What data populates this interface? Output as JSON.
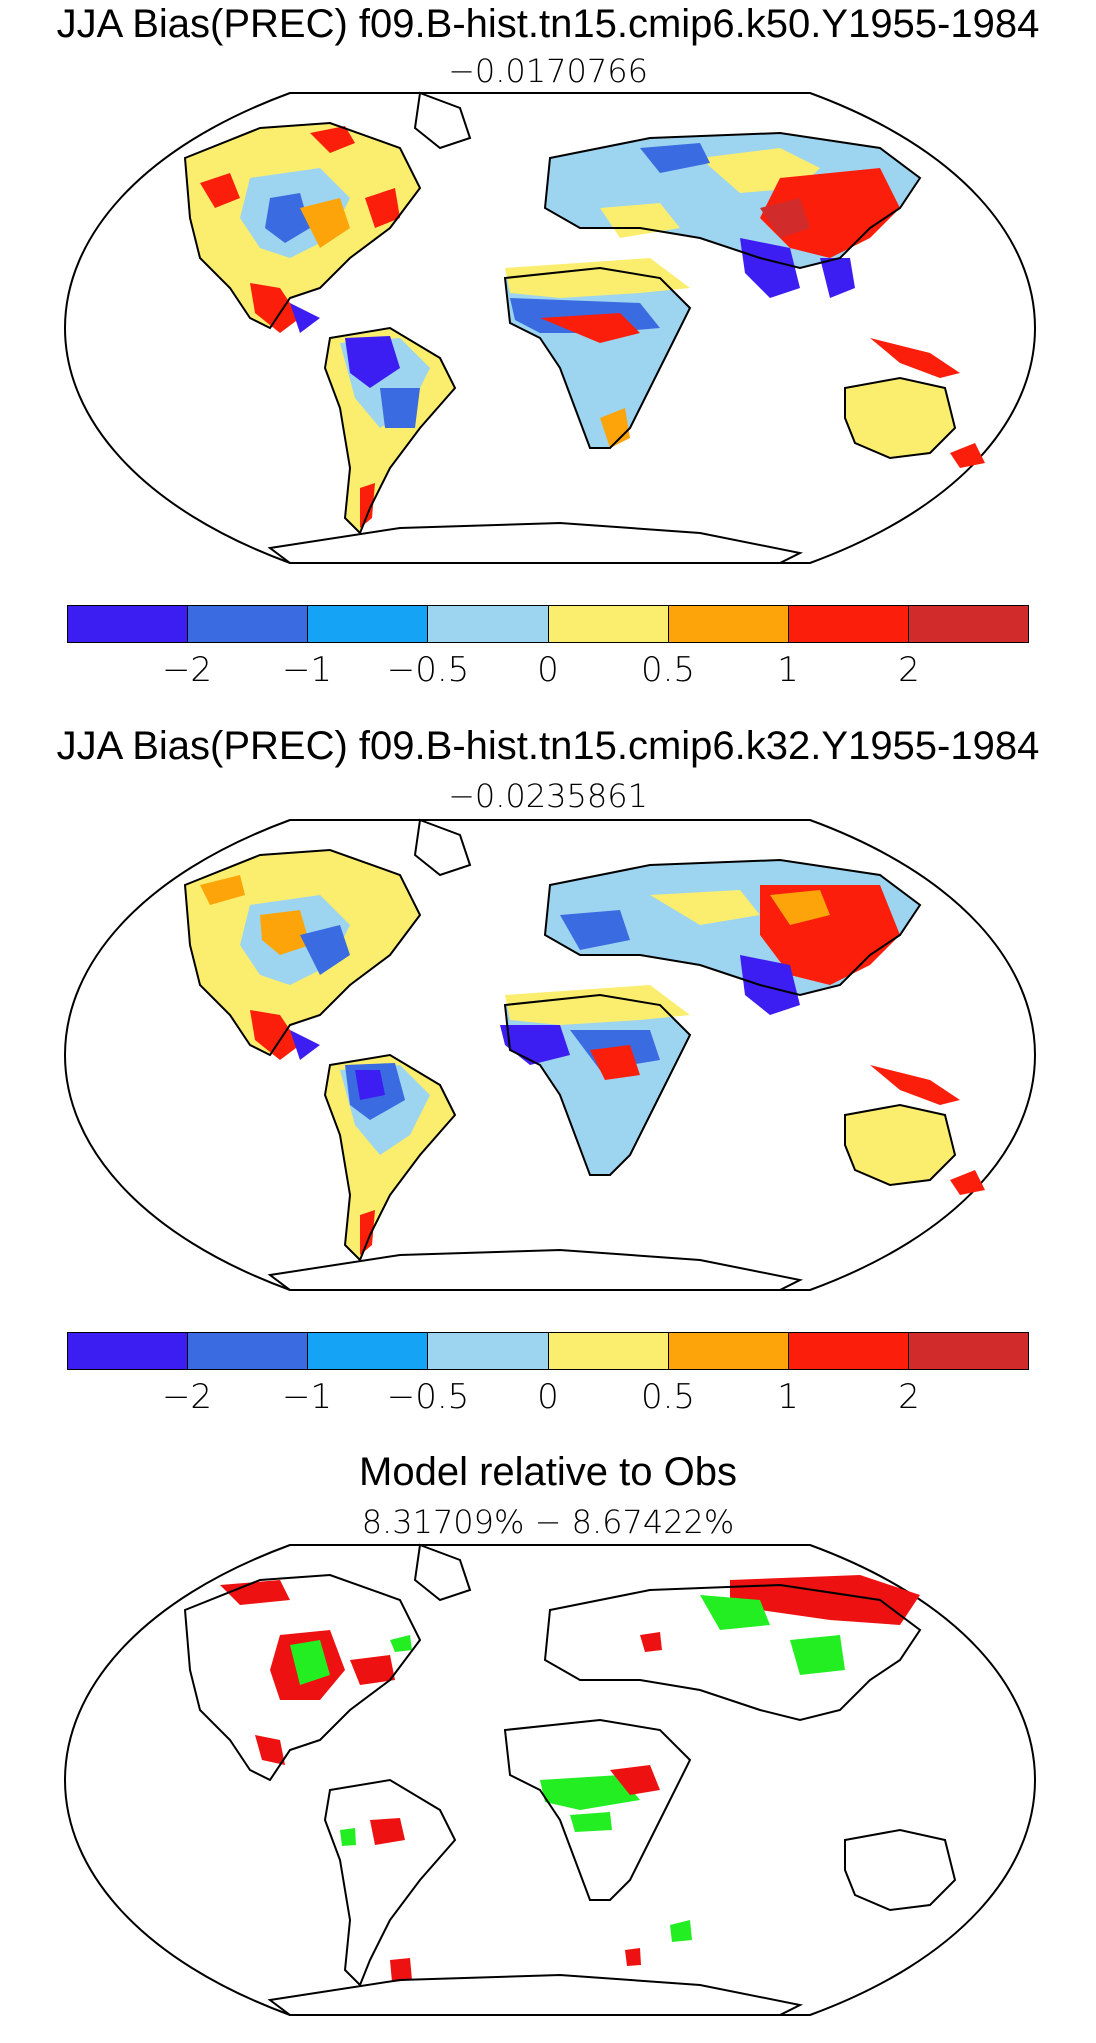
{
  "panels": [
    {
      "title": "JJA Bias(PREC) f09.B-hist.tn15.cmip6.k50.Y1955-1984",
      "subtitle": "−0.0170766"
    },
    {
      "title": "JJA Bias(PREC) f09.B-hist.tn15.cmip6.k32.Y1955-1984",
      "subtitle": "−0.0235861"
    },
    {
      "title": "Model relative to Obs",
      "subtitle": "8.31709% − 8.67422%"
    }
  ],
  "colorbar": {
    "colors": [
      "#3d1ef2",
      "#3b6be0",
      "#14a3f5",
      "#9dd4f0",
      "#fbee6e",
      "#fca40a",
      "#fb1e0a",
      "#d22b2b"
    ],
    "tick_labels": [
      "−2",
      "−1",
      "−0.5",
      "0",
      "0.5",
      "1",
      "2"
    ]
  },
  "significance_colors": {
    "positive": "#ee1111",
    "negative": "#22ee22"
  }
}
